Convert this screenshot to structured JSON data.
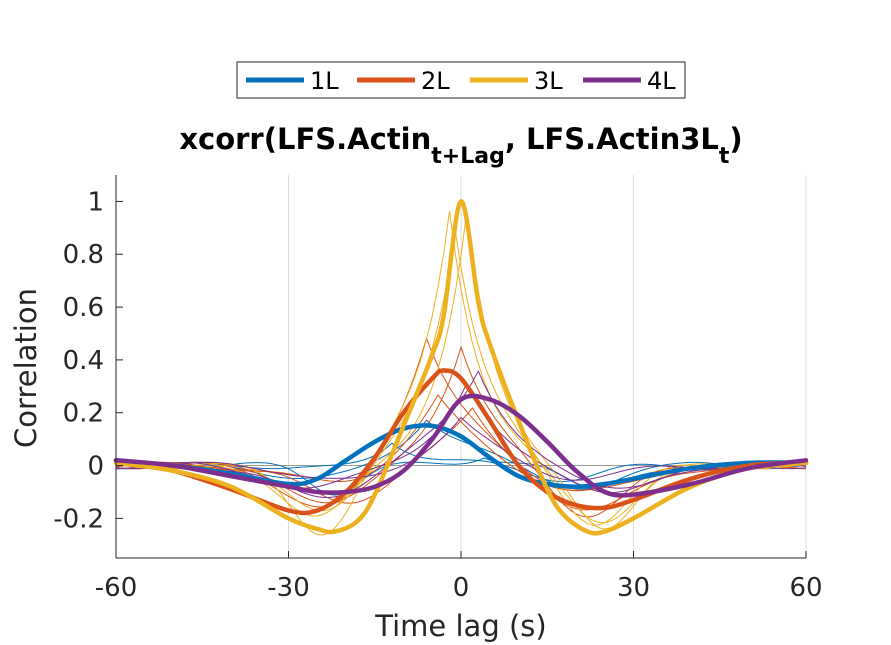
{
  "chart_data": {
    "type": "line",
    "title": {
      "prefix": "xcorr(LFS.Actin",
      "sub1": "t+Lag",
      "mid": ", LFS.Actin3L",
      "sub2": "t",
      "suffix": ")"
    },
    "xlabel": "Time lag (s)",
    "ylabel": "Correlation",
    "xlim": [
      -60,
      60
    ],
    "ylim": [
      -0.35,
      1.1
    ],
    "xticks": [
      -60,
      -30,
      0,
      30,
      60
    ],
    "xtick_labels": [
      "-60",
      "-30",
      "0",
      "30",
      "60"
    ],
    "yticks": [
      -0.2,
      0,
      0.2,
      0.4,
      0.6,
      0.8,
      1
    ],
    "ytick_labels": [
      "-0.2",
      "0",
      "0.2",
      "0.4",
      "0.6",
      "0.8",
      "1"
    ],
    "grid": "x-only",
    "legend_placement": "top-center, horizontal",
    "colors": {
      "1L": "#0072BD",
      "2L": "#D95319",
      "3L": "#EDB120",
      "4L": "#7E2F8E"
    },
    "series": [
      {
        "name": "1L",
        "color": "#0072BD",
        "x": [
          -60,
          -50,
          -40,
          -30,
          -25,
          -20,
          -15,
          -10,
          -5,
          0,
          5,
          10,
          15,
          20,
          25,
          30,
          40,
          50,
          60
        ],
        "values": [
          0.02,
          0.0,
          -0.03,
          -0.07,
          -0.05,
          0.02,
          0.09,
          0.14,
          0.15,
          0.11,
          0.03,
          -0.04,
          -0.07,
          -0.08,
          -0.07,
          -0.05,
          -0.01,
          0.01,
          0.01
        ]
      },
      {
        "name": "2L",
        "color": "#D95319",
        "x": [
          -60,
          -50,
          -40,
          -30,
          -25,
          -20,
          -15,
          -10,
          -5,
          -3,
          0,
          5,
          10,
          15,
          20,
          25,
          30,
          40,
          50,
          60
        ],
        "values": [
          0.02,
          -0.02,
          -0.09,
          -0.17,
          -0.17,
          -0.1,
          0.03,
          0.2,
          0.33,
          0.36,
          0.33,
          0.17,
          0.0,
          -0.1,
          -0.15,
          -0.16,
          -0.13,
          -0.05,
          0.0,
          0.01
        ]
      },
      {
        "name": "3L",
        "color": "#EDB120",
        "x": [
          -60,
          -50,
          -40,
          -30,
          -25,
          -22,
          -18,
          -15,
          -10,
          -5,
          -3,
          0,
          3,
          5,
          10,
          15,
          18,
          22,
          25,
          30,
          40,
          50,
          60
        ],
        "values": [
          0.01,
          -0.02,
          -0.08,
          -0.2,
          -0.24,
          -0.25,
          -0.21,
          -0.11,
          0.15,
          0.42,
          0.57,
          1.0,
          0.62,
          0.46,
          0.17,
          -0.09,
          -0.19,
          -0.25,
          -0.25,
          -0.2,
          -0.08,
          -0.01,
          0.01
        ]
      },
      {
        "name": "4L",
        "color": "#7E2F8E",
        "x": [
          -60,
          -50,
          -40,
          -30,
          -25,
          -20,
          -15,
          -10,
          -5,
          0,
          5,
          10,
          15,
          20,
          25,
          30,
          40,
          50,
          60
        ],
        "values": [
          0.02,
          0.0,
          -0.04,
          -0.08,
          -0.1,
          -0.1,
          -0.08,
          -0.02,
          0.1,
          0.25,
          0.25,
          0.19,
          0.09,
          -0.02,
          -0.1,
          -0.11,
          -0.07,
          -0.01,
          0.02
        ]
      }
    ],
    "thin_traces": [
      {
        "color": "#0072BD",
        "peak_x": -6,
        "peak_y": 0.2,
        "trough": -0.09,
        "trough_x": 22,
        "scale": 1.2
      },
      {
        "color": "#0072BD",
        "peak_x": -12,
        "peak_y": 0.12,
        "trough": -0.05,
        "trough_x": 18,
        "scale": 0.9
      },
      {
        "color": "#0072BD",
        "peak_x": 4,
        "peak_y": 0.04,
        "trough": -0.1,
        "trough_x": -22,
        "scale": 0.6
      },
      {
        "color": "#D95319",
        "peak_x": -6,
        "peak_y": 0.52,
        "trough": -0.22,
        "trough_x": -22,
        "scale": 1.1
      },
      {
        "color": "#D95319",
        "peak_x": 0,
        "peak_y": 0.45,
        "trough": -0.2,
        "trough_x": 22,
        "scale": 0.9
      },
      {
        "color": "#D95319",
        "peak_x": -4,
        "peak_y": 0.28,
        "trough": -0.12,
        "trough_x": 20,
        "scale": 1.2
      },
      {
        "color": "#D95319",
        "peak_x": 2,
        "peak_y": 0.22,
        "trough": -0.15,
        "trough_x": -20,
        "scale": 1.0
      },
      {
        "color": "#EDB120",
        "peak_x": -2,
        "peak_y": 0.97,
        "trough": -0.27,
        "trough_x": -24,
        "scale": 0.8
      },
      {
        "color": "#EDB120",
        "peak_x": 1,
        "peak_y": 0.95,
        "trough": -0.26,
        "trough_x": 25,
        "scale": 0.75
      },
      {
        "color": "#EDB120",
        "peak_x": -1,
        "peak_y": 0.9,
        "trough": -0.23,
        "trough_x": 23,
        "scale": 0.85
      },
      {
        "color": "#7E2F8E",
        "peak_x": 3,
        "peak_y": 0.37,
        "trough": -0.13,
        "trough_x": -24,
        "scale": 1.1
      },
      {
        "color": "#7E2F8E",
        "peak_x": 1,
        "peak_y": 0.3,
        "trough": -0.12,
        "trough_x": 26,
        "scale": 0.9
      },
      {
        "color": "#7E2F8E",
        "peak_x": 0,
        "peak_y": 0.2,
        "trough": -0.08,
        "trough_x": -18,
        "scale": 1.2
      }
    ]
  }
}
